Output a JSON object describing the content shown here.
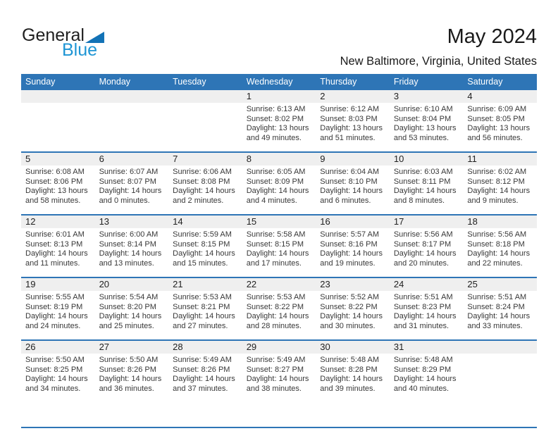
{
  "logo": {
    "line1": "General",
    "line2": "Blue"
  },
  "header": {
    "title": "May 2024",
    "subtitle": "New Baltimore, Virginia, United States"
  },
  "colors": {
    "header_bar_blue": "#2e75b6",
    "row_band_gray": "#efefef",
    "logo_triangle_blue": "#1272b6",
    "logo_text_blue": "#1e95d4"
  },
  "calendar": {
    "weekday_headers": [
      "Sunday",
      "Monday",
      "Tuesday",
      "Wednesday",
      "Thursday",
      "Friday",
      "Saturday"
    ],
    "weeks": [
      [
        null,
        null,
        null,
        {
          "day": "1",
          "lines": [
            "Sunrise: 6:13 AM",
            "Sunset: 8:02 PM",
            "Daylight: 13 hours",
            "and 49 minutes."
          ]
        },
        {
          "day": "2",
          "lines": [
            "Sunrise: 6:12 AM",
            "Sunset: 8:03 PM",
            "Daylight: 13 hours",
            "and 51 minutes."
          ]
        },
        {
          "day": "3",
          "lines": [
            "Sunrise: 6:10 AM",
            "Sunset: 8:04 PM",
            "Daylight: 13 hours",
            "and 53 minutes."
          ]
        },
        {
          "day": "4",
          "lines": [
            "Sunrise: 6:09 AM",
            "Sunset: 8:05 PM",
            "Daylight: 13 hours",
            "and 56 minutes."
          ]
        }
      ],
      [
        {
          "day": "5",
          "lines": [
            "Sunrise: 6:08 AM",
            "Sunset: 8:06 PM",
            "Daylight: 13 hours",
            "and 58 minutes."
          ]
        },
        {
          "day": "6",
          "lines": [
            "Sunrise: 6:07 AM",
            "Sunset: 8:07 PM",
            "Daylight: 14 hours",
            "and 0 minutes."
          ]
        },
        {
          "day": "7",
          "lines": [
            "Sunrise: 6:06 AM",
            "Sunset: 8:08 PM",
            "Daylight: 14 hours",
            "and 2 minutes."
          ]
        },
        {
          "day": "8",
          "lines": [
            "Sunrise: 6:05 AM",
            "Sunset: 8:09 PM",
            "Daylight: 14 hours",
            "and 4 minutes."
          ]
        },
        {
          "day": "9",
          "lines": [
            "Sunrise: 6:04 AM",
            "Sunset: 8:10 PM",
            "Daylight: 14 hours",
            "and 6 minutes."
          ]
        },
        {
          "day": "10",
          "lines": [
            "Sunrise: 6:03 AM",
            "Sunset: 8:11 PM",
            "Daylight: 14 hours",
            "and 8 minutes."
          ]
        },
        {
          "day": "11",
          "lines": [
            "Sunrise: 6:02 AM",
            "Sunset: 8:12 PM",
            "Daylight: 14 hours",
            "and 9 minutes."
          ]
        }
      ],
      [
        {
          "day": "12",
          "lines": [
            "Sunrise: 6:01 AM",
            "Sunset: 8:13 PM",
            "Daylight: 14 hours",
            "and 11 minutes."
          ]
        },
        {
          "day": "13",
          "lines": [
            "Sunrise: 6:00 AM",
            "Sunset: 8:14 PM",
            "Daylight: 14 hours",
            "and 13 minutes."
          ]
        },
        {
          "day": "14",
          "lines": [
            "Sunrise: 5:59 AM",
            "Sunset: 8:15 PM",
            "Daylight: 14 hours",
            "and 15 minutes."
          ]
        },
        {
          "day": "15",
          "lines": [
            "Sunrise: 5:58 AM",
            "Sunset: 8:15 PM",
            "Daylight: 14 hours",
            "and 17 minutes."
          ]
        },
        {
          "day": "16",
          "lines": [
            "Sunrise: 5:57 AM",
            "Sunset: 8:16 PM",
            "Daylight: 14 hours",
            "and 19 minutes."
          ]
        },
        {
          "day": "17",
          "lines": [
            "Sunrise: 5:56 AM",
            "Sunset: 8:17 PM",
            "Daylight: 14 hours",
            "and 20 minutes."
          ]
        },
        {
          "day": "18",
          "lines": [
            "Sunrise: 5:56 AM",
            "Sunset: 8:18 PM",
            "Daylight: 14 hours",
            "and 22 minutes."
          ]
        }
      ],
      [
        {
          "day": "19",
          "lines": [
            "Sunrise: 5:55 AM",
            "Sunset: 8:19 PM",
            "Daylight: 14 hours",
            "and 24 minutes."
          ]
        },
        {
          "day": "20",
          "lines": [
            "Sunrise: 5:54 AM",
            "Sunset: 8:20 PM",
            "Daylight: 14 hours",
            "and 25 minutes."
          ]
        },
        {
          "day": "21",
          "lines": [
            "Sunrise: 5:53 AM",
            "Sunset: 8:21 PM",
            "Daylight: 14 hours",
            "and 27 minutes."
          ]
        },
        {
          "day": "22",
          "lines": [
            "Sunrise: 5:53 AM",
            "Sunset: 8:22 PM",
            "Daylight: 14 hours",
            "and 28 minutes."
          ]
        },
        {
          "day": "23",
          "lines": [
            "Sunrise: 5:52 AM",
            "Sunset: 8:22 PM",
            "Daylight: 14 hours",
            "and 30 minutes."
          ]
        },
        {
          "day": "24",
          "lines": [
            "Sunrise: 5:51 AM",
            "Sunset: 8:23 PM",
            "Daylight: 14 hours",
            "and 31 minutes."
          ]
        },
        {
          "day": "25",
          "lines": [
            "Sunrise: 5:51 AM",
            "Sunset: 8:24 PM",
            "Daylight: 14 hours",
            "and 33 minutes."
          ]
        }
      ],
      [
        {
          "day": "26",
          "lines": [
            "Sunrise: 5:50 AM",
            "Sunset: 8:25 PM",
            "Daylight: 14 hours",
            "and 34 minutes."
          ]
        },
        {
          "day": "27",
          "lines": [
            "Sunrise: 5:50 AM",
            "Sunset: 8:26 PM",
            "Daylight: 14 hours",
            "and 36 minutes."
          ]
        },
        {
          "day": "28",
          "lines": [
            "Sunrise: 5:49 AM",
            "Sunset: 8:26 PM",
            "Daylight: 14 hours",
            "and 37 minutes."
          ]
        },
        {
          "day": "29",
          "lines": [
            "Sunrise: 5:49 AM",
            "Sunset: 8:27 PM",
            "Daylight: 14 hours",
            "and 38 minutes."
          ]
        },
        {
          "day": "30",
          "lines": [
            "Sunrise: 5:48 AM",
            "Sunset: 8:28 PM",
            "Daylight: 14 hours",
            "and 39 minutes."
          ]
        },
        {
          "day": "31",
          "lines": [
            "Sunrise: 5:48 AM",
            "Sunset: 8:29 PM",
            "Daylight: 14 hours",
            "and 40 minutes."
          ]
        },
        null
      ]
    ]
  }
}
